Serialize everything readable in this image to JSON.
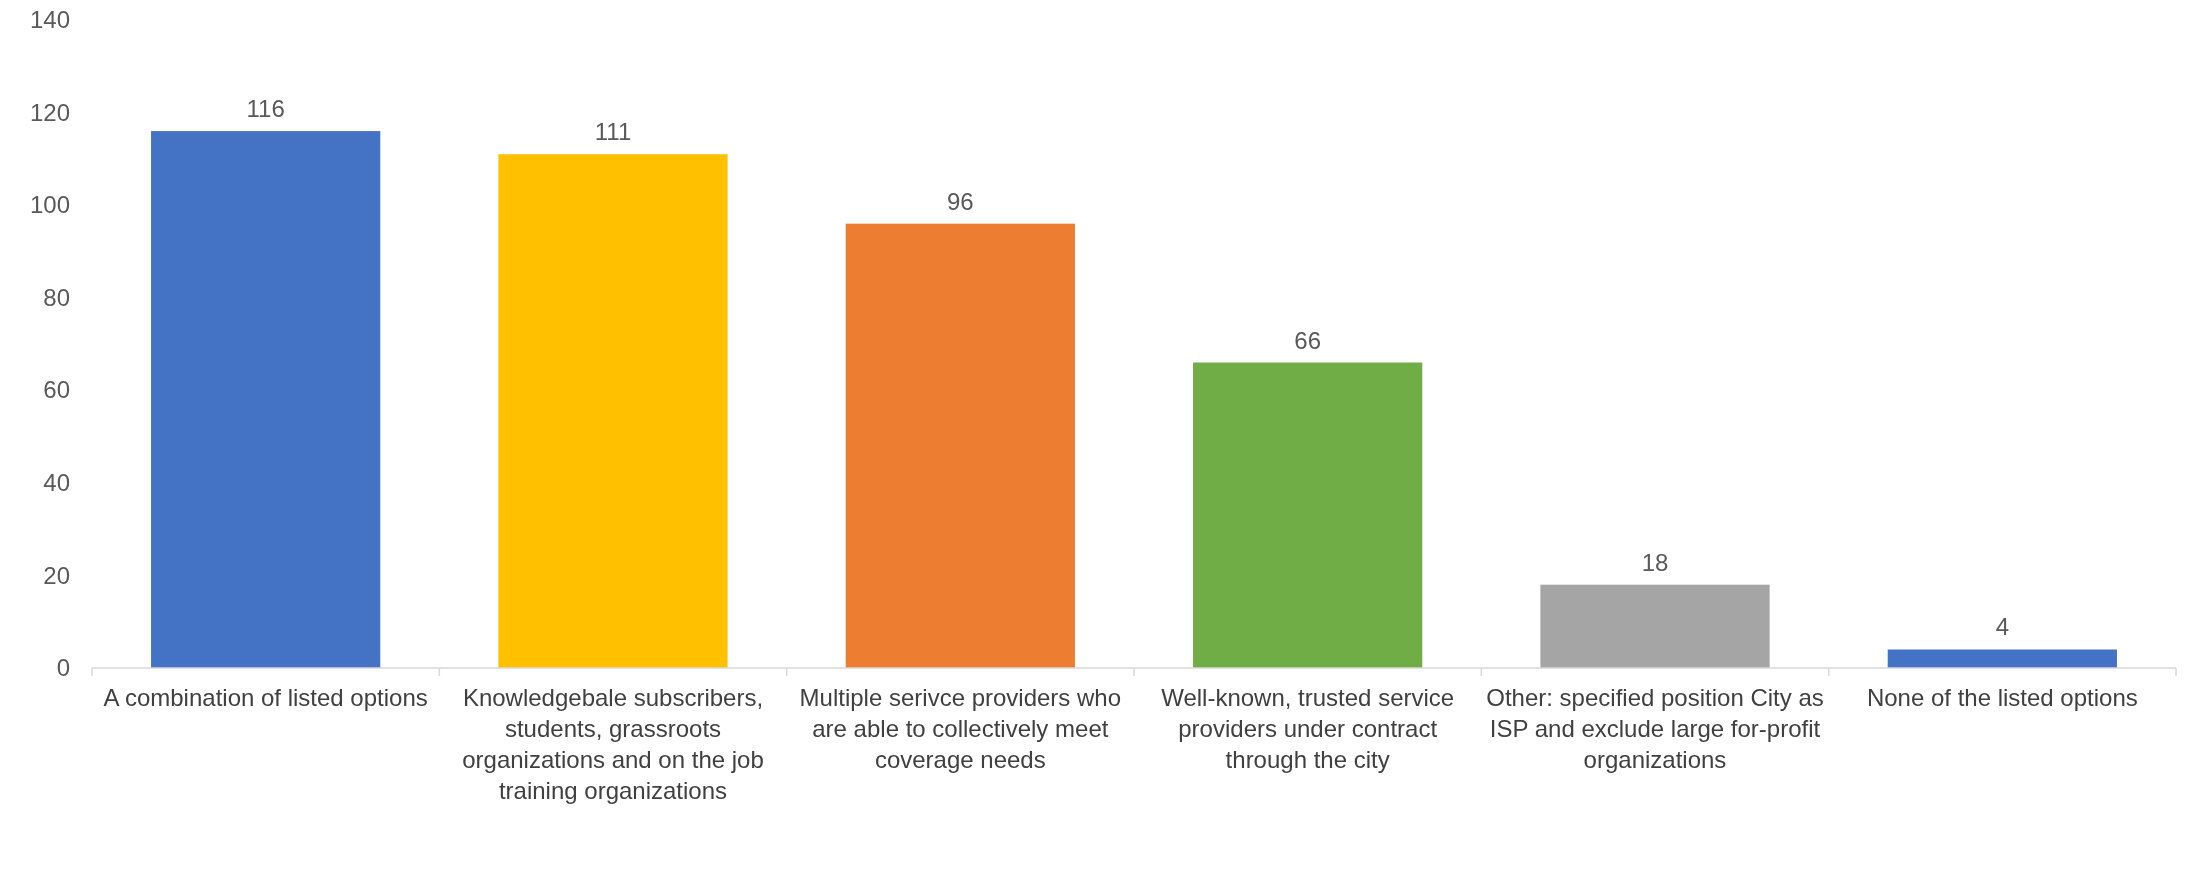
{
  "chart_data": {
    "type": "bar",
    "categories": [
      "A combination of listed options",
      "Knowledgebale subscribers, students, grassroots organizations and on the job training organizations",
      "Multiple serivce providers who are able to collectively meet coverage needs",
      "Well-known, trusted service providers under contract through the city",
      "Other: specified position City as ISP and exclude large for-profit organizations",
      "None of the listed options"
    ],
    "values": [
      116,
      111,
      96,
      66,
      18,
      4
    ],
    "colors": [
      "#4472c4",
      "#ffc000",
      "#ed7d31",
      "#70ad47",
      "#a5a5a5",
      "#4472c4"
    ],
    "ylim": [
      0,
      140
    ],
    "yticks": [
      0,
      20,
      40,
      60,
      80,
      100,
      120,
      140
    ],
    "grid": false,
    "data_labels": true
  }
}
